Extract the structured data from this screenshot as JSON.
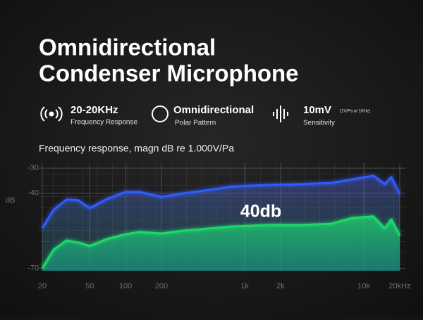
{
  "header": {
    "title_lines": [
      "Omnidirectional",
      "Condenser Microphone"
    ]
  },
  "specs": [
    {
      "value": "20-20KHz",
      "label": "Frequency Response"
    },
    {
      "value": "Omnidirectional",
      "label": "Polar Pattern"
    },
    {
      "value": "10mV",
      "note": "(1V/Pa at 1KHz)",
      "label": "Sensitivity"
    }
  ],
  "chart_data": {
    "type": "line",
    "title": "Frequency response, magn dB re 1.000V/Pa",
    "ylabel": "dB",
    "annotation": "40db",
    "xscale": "log",
    "xlim": [
      20,
      20000
    ],
    "ylim": [
      -28,
      -71
    ],
    "xticks": [
      20,
      50,
      100,
      200,
      {
        "value": 1000,
        "label": "1k"
      },
      {
        "value": 2000,
        "label": "2k"
      },
      {
        "value": 10000,
        "label": "10k"
      },
      {
        "value": 20000,
        "label": "20kHz"
      }
    ],
    "yticks": [
      -30,
      -40,
      -70
    ],
    "grid": true,
    "x": [
      20,
      25,
      32,
      40,
      50,
      70,
      100,
      130,
      200,
      300,
      500,
      800,
      1600,
      3000,
      5300,
      8000,
      12000,
      15000,
      17000,
      20000
    ],
    "series": [
      {
        "color": "#2f5cff",
        "values": [
          -54,
          -46.5,
          -42.6,
          -42.8,
          -46,
          -42.3,
          -39.5,
          -39.5,
          -41.5,
          -40.1,
          -38.7,
          -37.3,
          -36.7,
          -36.4,
          -35.9,
          -34.5,
          -33,
          -36.4,
          -33.6,
          -40.4
        ]
      },
      {
        "color": "#1fd86a",
        "values": [
          -70,
          -62.5,
          -58.9,
          -59.7,
          -61.1,
          -58.3,
          -56.4,
          -55.5,
          -56.1,
          -55,
          -54.1,
          -53.3,
          -52.7,
          -52.7,
          -52.2,
          -49.9,
          -49.3,
          -54.1,
          -50.5,
          -56.9
        ]
      }
    ]
  }
}
